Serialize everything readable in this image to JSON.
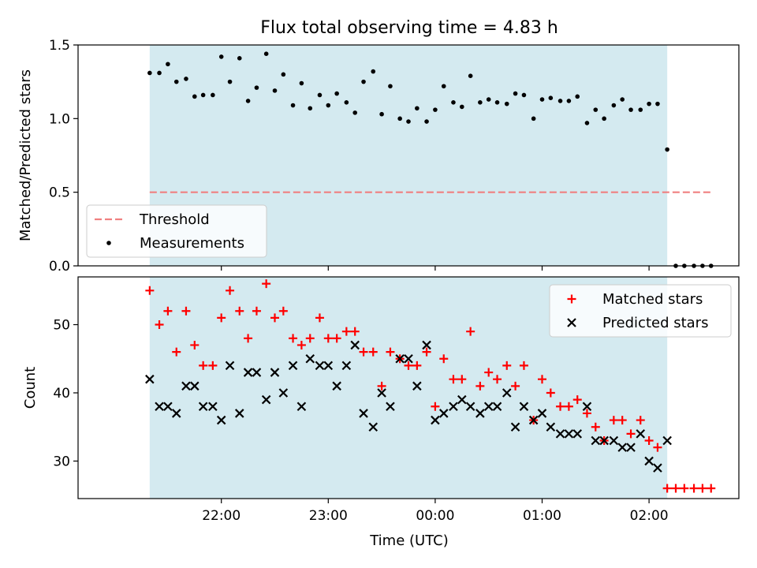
{
  "title": "Flux total observing time = 4.83 h",
  "xlabel": "Time (UTC)",
  "x_ticks": [
    {
      "label": "22:00",
      "t": 22.0
    },
    {
      "label": "23:00",
      "t": 23.0
    },
    {
      "label": "00:00",
      "t": 24.0
    },
    {
      "label": "01:00",
      "t": 25.0
    },
    {
      "label": "02:00",
      "t": 26.0
    }
  ],
  "colors": {
    "observing_band": "#d4eaf0",
    "threshold": "#f08080",
    "measurements": "#000000",
    "matched": "#ff0000",
    "predicted": "#000000"
  },
  "chart_data": [
    {
      "type": "scatter",
      "title": "Flux total observing time = 4.83 h",
      "ylabel": "Matched/Predicted stars",
      "xlim": [
        20.66,
        26.84
      ],
      "ylim": [
        0,
        1.5
      ],
      "y_ticks": [
        "0.0",
        "0.5",
        "1.0",
        "1.5"
      ],
      "observing_window": [
        21.33,
        26.17
      ],
      "threshold": {
        "name": "Threshold",
        "value": 0.5,
        "x_range": [
          21.33,
          26.58
        ]
      },
      "legend": {
        "position": "lower-left",
        "entries": [
          "Threshold",
          "Measurements"
        ]
      },
      "series": [
        {
          "name": "Measurements",
          "x": [
            21.33,
            21.42,
            21.5,
            21.58,
            21.67,
            21.75,
            21.83,
            21.92,
            22.0,
            22.08,
            22.17,
            22.25,
            22.33,
            22.42,
            22.5,
            22.58,
            22.67,
            22.75,
            22.83,
            22.92,
            23.0,
            23.08,
            23.17,
            23.25,
            23.33,
            23.42,
            23.5,
            23.58,
            23.67,
            23.75,
            23.83,
            23.92,
            24.0,
            24.08,
            24.17,
            24.25,
            24.33,
            24.42,
            24.5,
            24.58,
            24.67,
            24.75,
            24.83,
            24.92,
            25.0,
            25.08,
            25.17,
            25.25,
            25.33,
            25.42,
            25.5,
            25.58,
            25.67,
            25.75,
            25.83,
            25.92,
            26.0,
            26.08,
            26.17,
            26.25,
            26.33,
            26.42,
            26.5,
            26.58
          ],
          "y": [
            1.31,
            1.31,
            1.37,
            1.25,
            1.27,
            1.15,
            1.16,
            1.16,
            1.42,
            1.25,
            1.41,
            1.12,
            1.21,
            1.44,
            1.19,
            1.3,
            1.09,
            1.24,
            1.07,
            1.16,
            1.09,
            1.17,
            1.11,
            1.04,
            1.25,
            1.32,
            1.03,
            1.22,
            1.0,
            0.98,
            1.07,
            0.98,
            1.06,
            1.22,
            1.11,
            1.08,
            1.29,
            1.11,
            1.13,
            1.11,
            1.1,
            1.17,
            1.16,
            1.0,
            1.13,
            1.14,
            1.12,
            1.12,
            1.15,
            0.97,
            1.06,
            1.0,
            1.09,
            1.13,
            1.06,
            1.06,
            1.1,
            1.1,
            0.79,
            0.0,
            0.0,
            0.0,
            0.0,
            0.0
          ]
        }
      ]
    },
    {
      "type": "scatter",
      "xlabel": "Time (UTC)",
      "ylabel": "Count",
      "xlim": [
        20.66,
        26.84
      ],
      "ylim": [
        24.5,
        57
      ],
      "y_ticks": [
        "30",
        "40",
        "50"
      ],
      "observing_window": [
        21.33,
        26.17
      ],
      "legend": {
        "position": "top-right",
        "entries": [
          "Matched stars",
          "Predicted stars"
        ]
      },
      "series": [
        {
          "name": "Matched stars",
          "marker": "plus",
          "x": [
            21.33,
            21.42,
            21.5,
            21.58,
            21.67,
            21.75,
            21.83,
            21.92,
            22.0,
            22.08,
            22.17,
            22.25,
            22.33,
            22.42,
            22.5,
            22.58,
            22.67,
            22.75,
            22.83,
            22.92,
            23.0,
            23.08,
            23.17,
            23.25,
            23.33,
            23.42,
            23.5,
            23.58,
            23.67,
            23.75,
            23.83,
            23.92,
            24.0,
            24.08,
            24.17,
            24.25,
            24.33,
            24.42,
            24.5,
            24.58,
            24.67,
            24.75,
            24.83,
            24.92,
            25.0,
            25.08,
            25.17,
            25.25,
            25.33,
            25.42,
            25.5,
            25.58,
            25.67,
            25.75,
            25.83,
            25.92,
            26.0,
            26.08,
            26.17,
            26.25,
            26.33,
            26.42,
            26.5,
            26.58
          ],
          "y": [
            55,
            50,
            52,
            46,
            52,
            47,
            44,
            44,
            51,
            55,
            52,
            48,
            52,
            56,
            51,
            52,
            48,
            47,
            48,
            51,
            48,
            48,
            49,
            49,
            46,
            46,
            41,
            46,
            45,
            44,
            44,
            46,
            38,
            45,
            42,
            42,
            49,
            41,
            43,
            42,
            44,
            41,
            44,
            36,
            42,
            40,
            38,
            38,
            39,
            37,
            35,
            33,
            36,
            36,
            34,
            36,
            33,
            32,
            26,
            26,
            26,
            26,
            26,
            26
          ]
        },
        {
          "name": "Predicted stars",
          "marker": "x",
          "x": [
            21.33,
            21.42,
            21.5,
            21.58,
            21.67,
            21.75,
            21.83,
            21.92,
            22.0,
            22.08,
            22.17,
            22.25,
            22.33,
            22.42,
            22.5,
            22.58,
            22.67,
            22.75,
            22.83,
            22.92,
            23.0,
            23.08,
            23.17,
            23.25,
            23.33,
            23.42,
            23.5,
            23.58,
            23.67,
            23.75,
            23.83,
            23.92,
            24.0,
            24.08,
            24.17,
            24.25,
            24.33,
            24.42,
            24.5,
            24.58,
            24.67,
            24.75,
            24.83,
            24.92,
            25.0,
            25.08,
            25.17,
            25.25,
            25.33,
            25.42,
            25.5,
            25.58,
            25.67,
            25.75,
            25.83,
            25.92,
            26.0,
            26.08,
            26.17
          ],
          "y": [
            42,
            38,
            38,
            37,
            41,
            41,
            38,
            38,
            36,
            44,
            37,
            43,
            43,
            39,
            43,
            40,
            44,
            38,
            45,
            44,
            44,
            41,
            44,
            47,
            37,
            35,
            40,
            38,
            45,
            45,
            41,
            47,
            36,
            37,
            38,
            39,
            38,
            37,
            38,
            38,
            40,
            35,
            38,
            36,
            37,
            35,
            34,
            34,
            34,
            38,
            33,
            33,
            33,
            32,
            32,
            34,
            30,
            29,
            33
          ]
        }
      ]
    }
  ]
}
